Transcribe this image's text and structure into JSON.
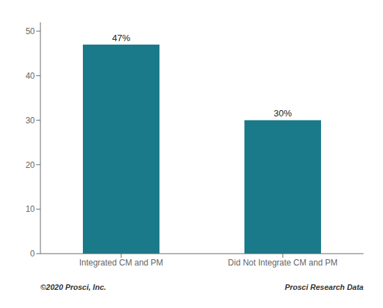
{
  "chart_data": {
    "type": "bar",
    "categories": [
      "Integrated CM and PM",
      "Did Not Integrate CM and PM"
    ],
    "values": [
      47,
      30
    ],
    "value_labels": [
      "47%",
      "30%"
    ],
    "data_labels": true,
    "color": "#1a7a8a",
    "ylim": [
      0,
      52
    ],
    "yticks": [
      0,
      10,
      20,
      30,
      40,
      50
    ],
    "grid": false,
    "annotations": [
      "©2020 Prosci, Inc.",
      "Prosci Research Data"
    ]
  }
}
